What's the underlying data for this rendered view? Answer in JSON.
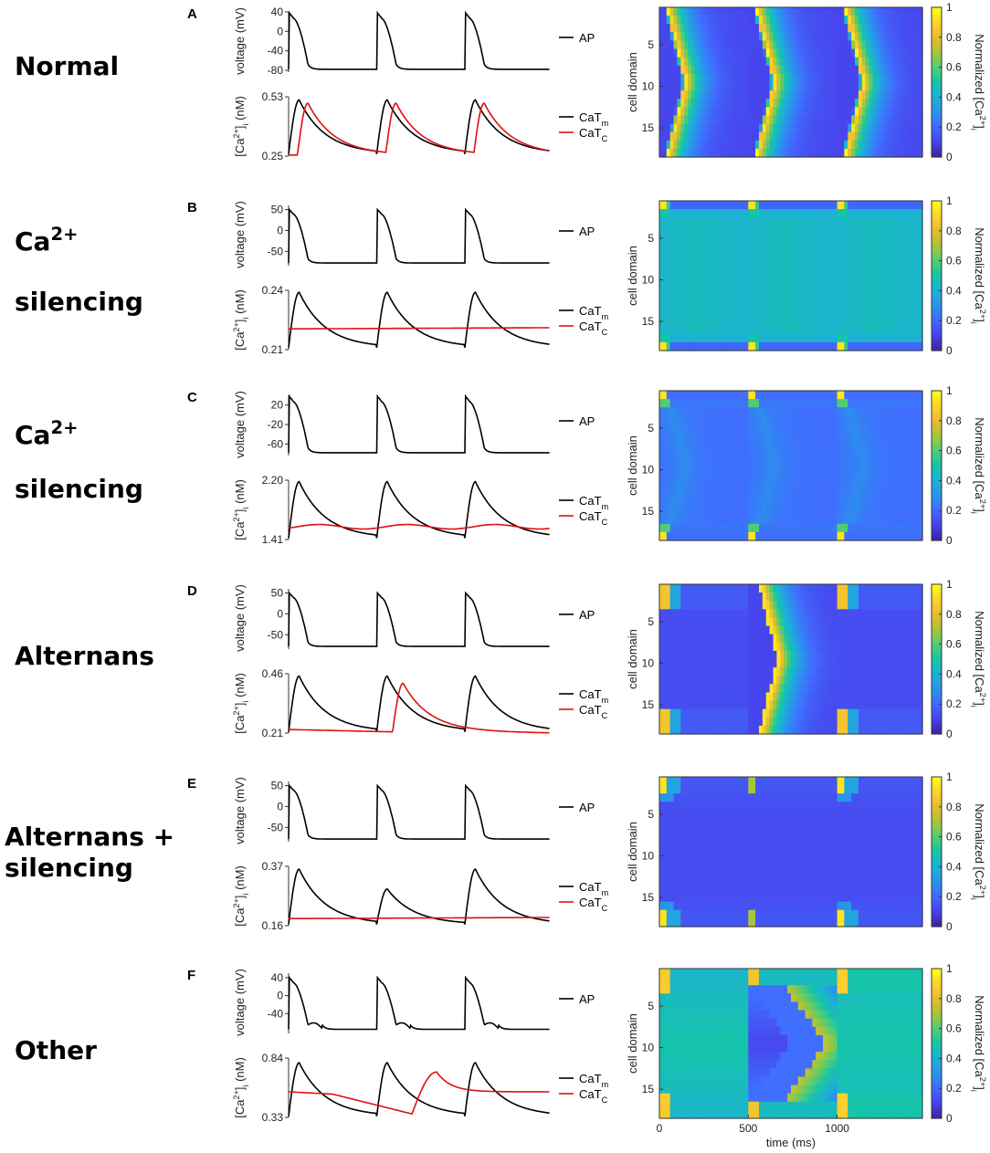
{
  "figure": {
    "time_label": "time (ms)",
    "cell_domain_label": "cell domain",
    "colorbar_label": "Normalized [Ca2+]i",
    "voltage_label": "voltage (mV)",
    "ca_label": "[Ca2+]i (nM)",
    "legend_ap": "AP",
    "legend_catm": "CaTm",
    "legend_catc": "CaTC",
    "colors": {
      "ap": "#000000",
      "catm": "#000000",
      "catc": "#dd1111"
    }
  },
  "chart_data": [
    {
      "type": "line",
      "panel": "A",
      "row_label": "Normal",
      "voltage": {
        "ticks": [
          "40",
          "0",
          "-40",
          "-80"
        ],
        "ylim": [
          -80,
          40
        ],
        "rest": -78,
        "peak": 38
      },
      "calcium": {
        "ticks": [
          "0.53",
          "0.25"
        ],
        "ylim": [
          0.25,
          0.53
        ],
        "catm_base": 0.26,
        "catm_peaks": [
          0.515,
          0.515,
          0.515
        ],
        "catc_mode": "lagged",
        "catc_base": 0.255,
        "catc_peaks": [
          0.5,
          0.5,
          0.5
        ],
        "catc_delay": 0.1
      },
      "heatmap": {
        "pattern": "full_wave",
        "wave_delays": [
          0,
          0,
          0
        ],
        "intensity": [
          1,
          1,
          1
        ],
        "base": 0.12,
        "colorbar_ticks": [
          "1",
          "0.8",
          "0.6",
          "0.4",
          "0.2",
          "0"
        ],
        "y_ticks": [
          "5",
          "10",
          "15"
        ]
      }
    },
    {
      "type": "line",
      "panel": "B",
      "row_label": "Ca2+ silencing",
      "voltage": {
        "ticks": [
          "50",
          "0",
          "-50"
        ],
        "ylim": [
          -80,
          60
        ],
        "rest": -78,
        "peak": 50
      },
      "calcium": {
        "ticks": [
          "0.24",
          "0.21"
        ],
        "ylim": [
          0.21,
          0.24
        ],
        "catm_base": 0.211,
        "catm_peaks": [
          0.239,
          0.239,
          0.239
        ],
        "catc_mode": "flat",
        "catc_level": 0.2205
      },
      "heatmap": {
        "pattern": "edges_only",
        "base": 0.45,
        "colorbar_ticks": [
          "1",
          "0.8",
          "0.6",
          "0.4",
          "0.2",
          "0"
        ],
        "y_ticks": [
          "5",
          "10",
          "15"
        ]
      }
    },
    {
      "type": "line",
      "panel": "C",
      "row_label": "Ca2+ silencing",
      "voltage": {
        "ticks": [
          "20",
          "-20",
          "-60"
        ],
        "ylim": [
          -80,
          40
        ],
        "rest": -78,
        "peak": 38
      },
      "calcium": {
        "ticks": [
          "2.20",
          "1.41"
        ],
        "ylim": [
          1.41,
          2.2
        ],
        "catm_base": 1.43,
        "catm_peaks": [
          2.18,
          2.18,
          2.18
        ],
        "catc_mode": "wobble",
        "catc_level": 1.58,
        "catc_amp": 0.05
      },
      "heatmap": {
        "pattern": "faint_wave",
        "base": 0.22,
        "colorbar_ticks": [
          "1",
          "0.8",
          "0.6",
          "0.4",
          "0.2",
          "0"
        ],
        "y_ticks": [
          "5",
          "10",
          "15"
        ]
      }
    },
    {
      "type": "line",
      "panel": "D",
      "row_label": "Alternans",
      "voltage": {
        "ticks": [
          "50",
          "0",
          "-50"
        ],
        "ylim": [
          -80,
          60
        ],
        "rest": -78,
        "peak": 50
      },
      "calcium": {
        "ticks": [
          "0.46",
          "0.21"
        ],
        "ylim": [
          0.21,
          0.46
        ],
        "catm_base": 0.215,
        "catm_peaks": [
          0.45,
          0.45,
          0.45
        ],
        "catc_mode": "alternans",
        "catc_base": 0.225,
        "catc_peak": 0.42
      },
      "heatmap": {
        "pattern": "alternans",
        "base": 0.1,
        "colorbar_ticks": [
          "1",
          "0.8",
          "0.6",
          "0.4",
          "0.2",
          "0"
        ],
        "y_ticks": [
          "5",
          "10",
          "15"
        ]
      }
    },
    {
      "type": "line",
      "panel": "E",
      "row_label": "Alternans + silencing",
      "voltage": {
        "ticks": [
          "50",
          "0",
          "-50"
        ],
        "ylim": [
          -80,
          60
        ],
        "rest": -78,
        "peak": 50
      },
      "calcium": {
        "ticks": [
          "0.37",
          "0.16"
        ],
        "ylim": [
          0.16,
          0.37
        ],
        "catm_base": 0.165,
        "catm_peaks": [
          0.36,
          0.29,
          0.36
        ],
        "catc_mode": "flat",
        "catc_level": 0.185
      },
      "heatmap": {
        "pattern": "edges_alt",
        "base": 0.12,
        "colorbar_ticks": [
          "1",
          "0.8",
          "0.6",
          "0.4",
          "0.2",
          "0"
        ],
        "y_ticks": [
          "5",
          "10",
          "15"
        ]
      }
    },
    {
      "type": "line",
      "panel": "F",
      "row_label": "Other",
      "voltage": {
        "ticks": [
          "40",
          "0",
          "-40"
        ],
        "ylim": [
          -80,
          50
        ],
        "rest": -75,
        "peak": 40
      },
      "calcium": {
        "ticks": [
          "0.84",
          "0.33"
        ],
        "ylim": [
          0.33,
          0.84
        ],
        "catm_base": 0.34,
        "catm_peaks": [
          0.8,
          0.8,
          0.8
        ],
        "catc_mode": "other",
        "catc_base": 0.55
      },
      "heatmap": {
        "pattern": "other",
        "base": 0.45,
        "x_ticks": [
          "0",
          "500",
          "1000"
        ],
        "colorbar_ticks": [
          "1",
          "0.8",
          "0.6",
          "0.4",
          "0.2",
          "0"
        ],
        "y_ticks": [
          "5",
          "10",
          "15"
        ]
      }
    }
  ]
}
